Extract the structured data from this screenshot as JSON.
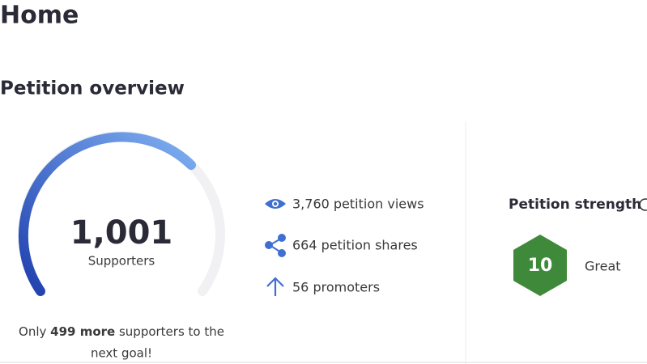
{
  "header": {
    "title": "Home"
  },
  "section": {
    "title": "Petition overview"
  },
  "supporters": {
    "count": "1,001",
    "label": "Supporters",
    "goal_text": {
      "before": "Only ",
      "bold": "499 more",
      "after": " supporters to the",
      "line2": "next goal!"
    }
  },
  "stats": [
    {
      "icon": "views",
      "text": "3,760 petition views"
    },
    {
      "icon": "shares",
      "text": "664 petition shares"
    },
    {
      "icon": "promoters",
      "text": "56 promoters"
    }
  ],
  "strength": {
    "title": "Petition strength",
    "score": "10",
    "rating": "Great"
  }
}
